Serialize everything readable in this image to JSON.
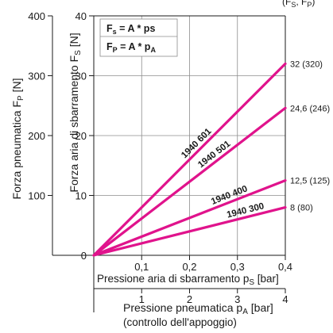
{
  "chart_data": {
    "type": "line",
    "header_fragment": "(F",
    "header_fragment_sub": "S",
    "header_fragment_end": ", F",
    "header_fragment_sub2": "P",
    "header_fragment_close": ")",
    "formulas": [
      {
        "lhs": "F",
        "sub": "s",
        "rhs": " = A * ps",
        "rhs_sub": ""
      },
      {
        "lhs": "F",
        "sub": "P",
        "rhs": " = A * p",
        "rhs_sub": "A"
      }
    ],
    "axis_outer_y": {
      "label": "Forza pneumatica F",
      "label_sub": "P",
      "label_unit": " [N]",
      "range": [
        0,
        400
      ],
      "ticks": [
        "100",
        "200",
        "300",
        "400"
      ],
      "tick_values": [
        100,
        200,
        300,
        400
      ]
    },
    "axis_inner_y": {
      "label": "Forza aria di sbarramento F",
      "label_sub": "S",
      "label_unit": " [N]",
      "range": [
        0,
        40
      ],
      "ticks": [
        "0",
        "10",
        "20",
        "30",
        "40"
      ],
      "tick_values": [
        0,
        10,
        20,
        30,
        40
      ]
    },
    "axis_inner_x": {
      "label": "Pressione aria di sbarramento p",
      "label_sub": "S",
      "label_unit": " [bar]",
      "range": [
        0,
        0.4
      ],
      "ticks": [
        "0,1",
        "0,2",
        "0,3",
        "0,4"
      ],
      "tick_values": [
        0.1,
        0.2,
        0.3,
        0.4
      ]
    },
    "axis_outer_x": {
      "label": "Pressione pneumatica p",
      "label_sub": "A",
      "label_unit": " [bar]",
      "label_line2": "(controllo dell'appoggio)",
      "range": [
        0,
        4
      ],
      "ticks": [
        "1",
        "2",
        "3",
        "4"
      ],
      "tick_values": [
        1,
        2,
        3,
        4
      ]
    },
    "grid": true,
    "series_color": "#e0138c",
    "series": [
      {
        "name": "1940 601",
        "x": [
          0,
          0.4
        ],
        "values": [
          0,
          32
        ],
        "end_label": "32",
        "end_label_paren": "(320)"
      },
      {
        "name": "1940 501",
        "x": [
          0,
          0.4
        ],
        "values": [
          0,
          24.6
        ],
        "end_label": "24,6",
        "end_label_paren": "(246)"
      },
      {
        "name": "1940 400",
        "x": [
          0,
          0.4
        ],
        "values": [
          0,
          12.5
        ],
        "end_label": "12,5",
        "end_label_paren": "(125)"
      },
      {
        "name": "1940 300",
        "x": [
          0,
          0.4
        ],
        "values": [
          0,
          8
        ],
        "end_label": "8",
        "end_label_paren": "(80)"
      }
    ]
  }
}
